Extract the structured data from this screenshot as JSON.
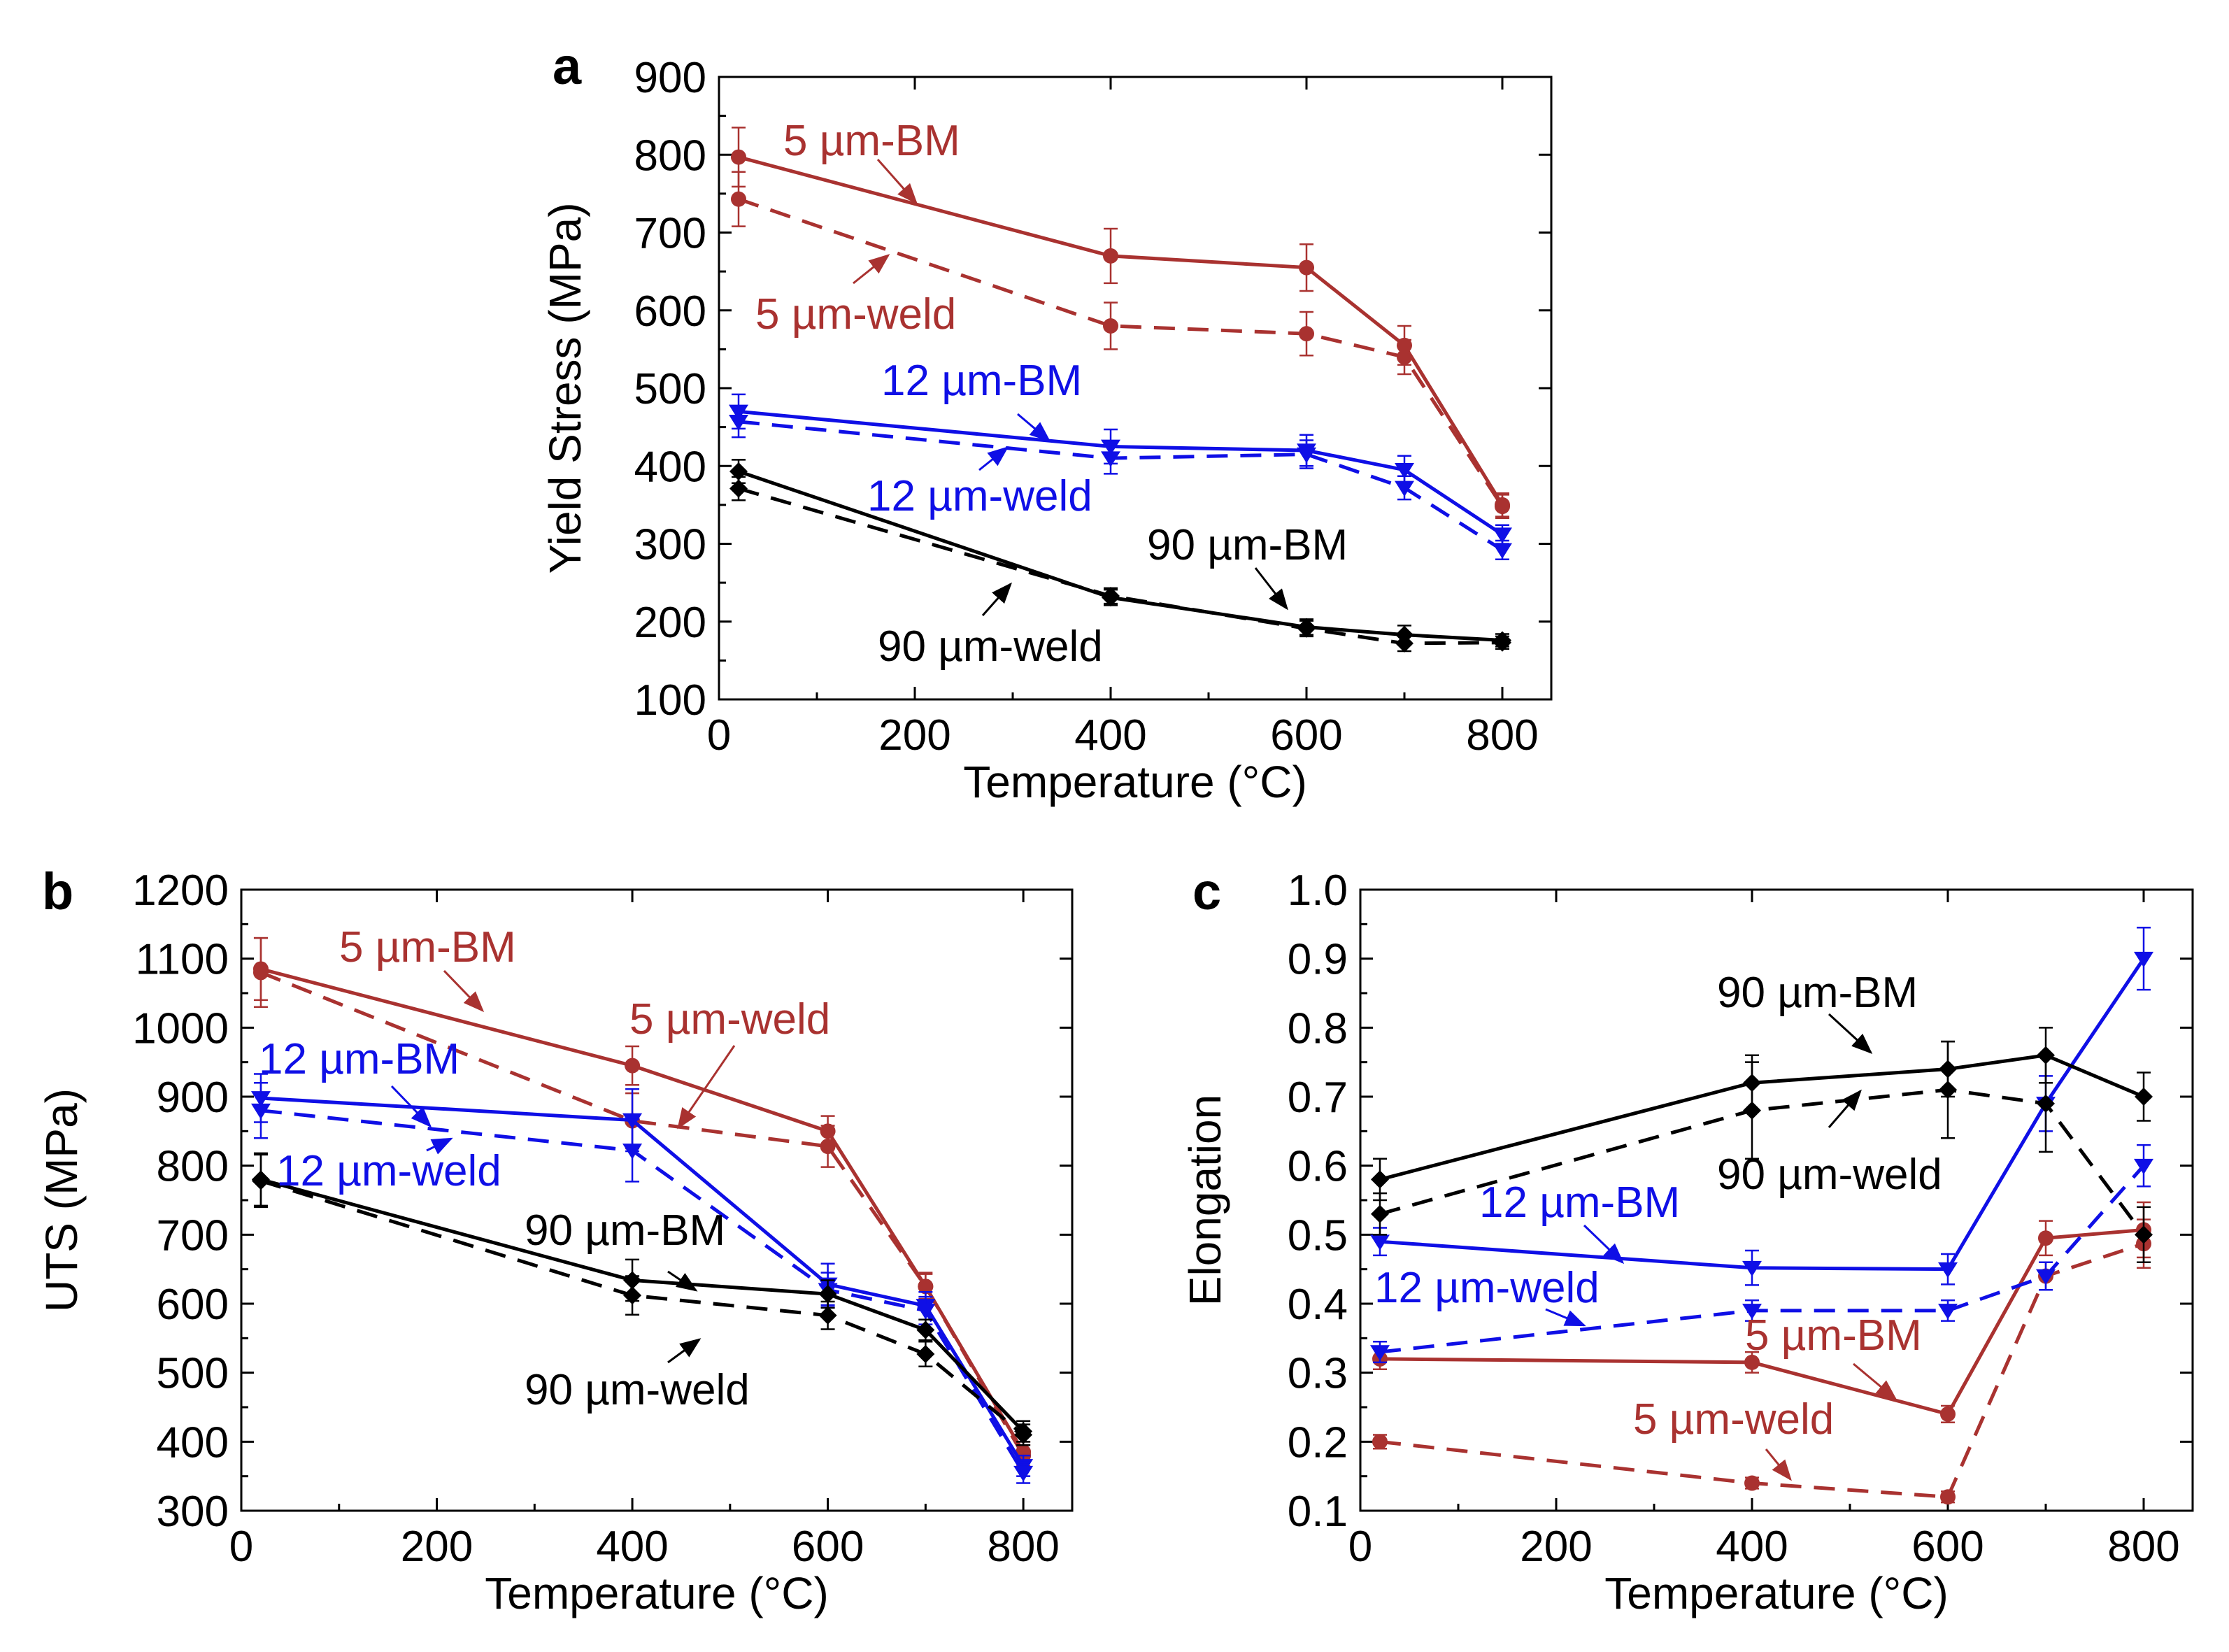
{
  "colors": {
    "5um": "#a93230",
    "12um": "#0f0fe6",
    "90um": "#000000"
  },
  "chart_data": [
    {
      "panel": "a",
      "type": "line",
      "title": "",
      "xlabel": "Temperature (°C)",
      "ylabel": "Yield Stress (MPa)",
      "xlim": [
        0,
        850
      ],
      "ylim": [
        100,
        900
      ],
      "xticks": [
        0,
        200,
        400,
        600,
        800
      ],
      "yticks": [
        100,
        200,
        300,
        400,
        500,
        600,
        700,
        800,
        900
      ],
      "xtick_labels": [
        "0",
        "200",
        "400",
        "600",
        "800"
      ],
      "ytick_labels": [
        "100",
        "200",
        "300",
        "400",
        "500",
        "600",
        "700",
        "800",
        "900"
      ],
      "x": [
        20,
        400,
        600,
        700,
        800
      ],
      "series": [
        {
          "name": "5 µm-BM",
          "group": "5um",
          "dash": false,
          "marker": "circle",
          "values": [
            797,
            670,
            655,
            555,
            350
          ],
          "err": [
            38,
            35,
            30,
            25,
            15
          ]
        },
        {
          "name": "5 µm-weld",
          "group": "5um",
          "dash": true,
          "marker": "circle",
          "values": [
            743,
            580,
            570,
            540,
            348
          ],
          "err": [
            35,
            30,
            28,
            22,
            15
          ]
        },
        {
          "name": "12 µm-BM",
          "group": "12um",
          "dash": false,
          "marker": "tri-down",
          "values": [
            470,
            425,
            420,
            395,
            312
          ],
          "err": [
            22,
            22,
            20,
            18,
            12
          ]
        },
        {
          "name": "12 µm-weld",
          "group": "12um",
          "dash": true,
          "marker": "tri-down",
          "values": [
            457,
            410,
            415,
            372,
            292
          ],
          "err": [
            20,
            20,
            18,
            15,
            12
          ]
        },
        {
          "name": "90 µm-BM",
          "group": "90um",
          "dash": false,
          "marker": "diamond",
          "values": [
            393,
            231,
            193,
            183,
            176
          ],
          "err": [
            15,
            10,
            10,
            12,
            8
          ]
        },
        {
          "name": "90 µm-weld",
          "group": "90um",
          "dash": true,
          "marker": "diamond",
          "values": [
            371,
            233,
            191,
            172,
            173
          ],
          "err": [
            15,
            10,
            10,
            10,
            8
          ]
        }
      ],
      "annotations": [
        {
          "text": "5 µm-BM",
          "group": "5um"
        },
        {
          "text": "5 µm-weld",
          "group": "5um"
        },
        {
          "text": "12 µm-BM",
          "group": "12um"
        },
        {
          "text": "12 µm-weld",
          "group": "12um"
        },
        {
          "text": "90 µm-BM",
          "group": "90um"
        },
        {
          "text": "90 µm-weld",
          "group": "90um"
        }
      ]
    },
    {
      "panel": "b",
      "type": "line",
      "title": "",
      "xlabel": "Temperature (°C)",
      "ylabel": "UTS (MPa)",
      "xlim": [
        0,
        850
      ],
      "ylim": [
        300,
        1200
      ],
      "xticks": [
        0,
        200,
        400,
        600,
        800
      ],
      "yticks": [
        300,
        400,
        500,
        600,
        700,
        800,
        900,
        1000,
        1100,
        1200
      ],
      "xtick_labels": [
        "0",
        "200",
        "400",
        "600",
        "800"
      ],
      "ytick_labels": [
        "300",
        "400",
        "500",
        "600",
        "700",
        "800",
        "900",
        "1000",
        "1100",
        "1200"
      ],
      "x": [
        20,
        400,
        600,
        700,
        800
      ],
      "series": [
        {
          "name": "5 µm-BM",
          "group": "5um",
          "dash": false,
          "marker": "circle",
          "values": [
            1085,
            945,
            850,
            625,
            385
          ],
          "err": [
            45,
            28,
            22,
            18,
            15
          ]
        },
        {
          "name": "5 µm-weld",
          "group": "5um",
          "dash": true,
          "marker": "circle",
          "values": [
            1080,
            865,
            828,
            625,
            380
          ],
          "err": [
            50,
            40,
            30,
            20,
            15
          ]
        },
        {
          "name": "12 µm-BM",
          "group": "12um",
          "dash": false,
          "marker": "tri-down",
          "values": [
            898,
            866,
            628,
            597,
            365
          ],
          "err": [
            35,
            45,
            30,
            20,
            15
          ]
        },
        {
          "name": "12 µm-weld",
          "group": "12um",
          "dash": true,
          "marker": "tri-down",
          "values": [
            880,
            822,
            620,
            590,
            355
          ],
          "err": [
            40,
            45,
            25,
            20,
            15
          ]
        },
        {
          "name": "90 µm-BM",
          "group": "90um",
          "dash": false,
          "marker": "diamond",
          "values": [
            780,
            634,
            614,
            562,
            415
          ],
          "err": [
            38,
            30,
            20,
            15,
            15
          ]
        },
        {
          "name": "90 µm-weld",
          "group": "90um",
          "dash": true,
          "marker": "diamond",
          "values": [
            778,
            612,
            583,
            527,
            410
          ],
          "err": [
            38,
            28,
            20,
            18,
            15
          ]
        }
      ],
      "annotations": [
        {
          "text": "5 µm-BM",
          "group": "5um"
        },
        {
          "text": "5 µm-weld",
          "group": "5um"
        },
        {
          "text": "12 µm-BM",
          "group": "12um"
        },
        {
          "text": "12 µm-weld",
          "group": "12um"
        },
        {
          "text": "90 µm-BM",
          "group": "90um"
        },
        {
          "text": "90 µm-weld",
          "group": "90um"
        }
      ]
    },
    {
      "panel": "c",
      "type": "line",
      "title": "",
      "xlabel": "Temperature (°C)",
      "ylabel": "Elongation",
      "xlim": [
        0,
        850
      ],
      "ylim": [
        0.1,
        1.0
      ],
      "xticks": [
        0,
        200,
        400,
        600,
        800
      ],
      "yticks": [
        0.1,
        0.2,
        0.3,
        0.4,
        0.5,
        0.6,
        0.7,
        0.8,
        0.9,
        1.0
      ],
      "xtick_labels": [
        "0",
        "200",
        "400",
        "600",
        "800"
      ],
      "ytick_labels": [
        "0.1",
        "0.2",
        "0.3",
        "0.4",
        "0.5",
        "0.6",
        "0.7",
        "0.8",
        "0.9",
        "1.0"
      ],
      "x": [
        20,
        400,
        600,
        700,
        800
      ],
      "series": [
        {
          "name": "5 µm-BM",
          "group": "5um",
          "dash": false,
          "marker": "circle",
          "values": [
            0.32,
            0.315,
            0.24,
            0.495,
            0.507
          ],
          "err": [
            0.015,
            0.015,
            0.012,
            0.025,
            0.04
          ]
        },
        {
          "name": "5 µm-weld",
          "group": "5um",
          "dash": true,
          "marker": "circle",
          "values": [
            0.2,
            0.14,
            0.12,
            0.44,
            0.487
          ],
          "err": [
            0.01,
            0.008,
            0.008,
            0.02,
            0.035
          ]
        },
        {
          "name": "12 µm-BM",
          "group": "12um",
          "dash": false,
          "marker": "tri-down",
          "values": [
            0.49,
            0.452,
            0.45,
            0.69,
            0.9
          ],
          "err": [
            0.02,
            0.025,
            0.022,
            0.04,
            0.045
          ]
        },
        {
          "name": "12 µm-weld",
          "group": "12um",
          "dash": true,
          "marker": "tri-down",
          "values": [
            0.33,
            0.39,
            0.39,
            0.44,
            0.6
          ],
          "err": [
            0.015,
            0.015,
            0.015,
            0.02,
            0.03
          ]
        },
        {
          "name": "90 µm-BM",
          "group": "90um",
          "dash": false,
          "marker": "diamond",
          "values": [
            0.58,
            0.72,
            0.74,
            0.76,
            0.7
          ],
          "err": [
            0.03,
            0.04,
            0.04,
            0.04,
            0.035
          ]
        },
        {
          "name": "90 µm-weld",
          "group": "90um",
          "dash": true,
          "marker": "diamond",
          "values": [
            0.53,
            0.68,
            0.71,
            0.69,
            0.5
          ],
          "err": [
            0.03,
            0.07,
            0.07,
            0.07,
            0.04
          ]
        }
      ],
      "annotations": [
        {
          "text": "90 µm-BM",
          "group": "90um"
        },
        {
          "text": "90 µm-weld",
          "group": "90um"
        },
        {
          "text": "12 µm-BM",
          "group": "12um"
        },
        {
          "text": "12 µm-weld",
          "group": "12um"
        },
        {
          "text": "5 µm-BM",
          "group": "5um"
        },
        {
          "text": "5 µm-weld",
          "group": "5um"
        }
      ]
    }
  ]
}
